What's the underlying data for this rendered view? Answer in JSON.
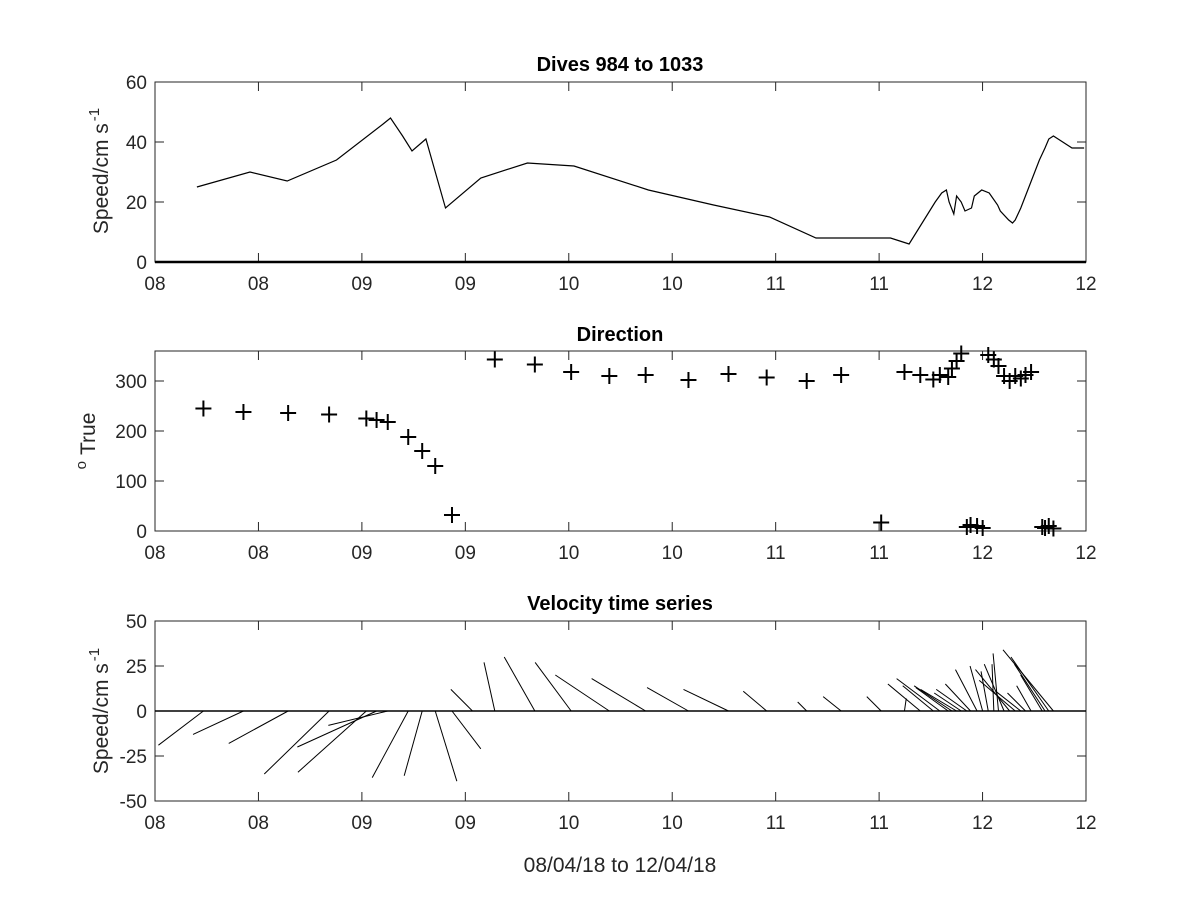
{
  "chart_data": [
    {
      "type": "line",
      "title": "Dives 984 to 1033",
      "ylabel": "Speed/cm s",
      "ylabel_superscript": "-1",
      "xlabel": "",
      "xlim": [
        0,
        1
      ],
      "ylim": [
        0,
        60
      ],
      "x_tick_labels": [
        "08",
        "08",
        "09",
        "09",
        "10",
        "10",
        "11",
        "11",
        "12",
        "12"
      ],
      "y_tick_labels": [
        "0",
        "20",
        "40",
        "60"
      ],
      "y_ticks": [
        0,
        20,
        40,
        60
      ],
      "series": [
        {
          "x": [
            0.045,
            0.102,
            0.142,
            0.195,
            0.245,
            0.253,
            0.266,
            0.276,
            0.291,
            0.312,
            0.35,
            0.4,
            0.45,
            0.53,
            0.6,
            0.66,
            0.71,
            0.76,
            0.79,
            0.8,
            0.81,
            0.838,
            0.845,
            0.85,
            0.853,
            0.858,
            0.861,
            0.866,
            0.87,
            0.877,
            0.88,
            0.888,
            0.896,
            0.905,
            0.908,
            0.917,
            0.921,
            0.924,
            0.93,
            0.94,
            0.95,
            0.956,
            0.96,
            0.965,
            0.97,
            0.985,
            0.992,
            0.998
          ],
          "y": [
            25,
            30,
            27,
            34,
            46,
            48,
            42,
            37,
            41,
            18,
            28,
            33,
            32,
            24,
            19,
            15,
            8,
            8,
            8,
            7,
            6,
            20,
            23,
            24,
            20,
            16,
            22,
            20,
            17,
            18,
            22,
            24,
            23,
            19,
            17,
            14,
            13,
            14,
            18,
            26,
            34,
            38,
            41,
            42,
            41,
            38,
            38,
            38
          ]
        }
      ]
    },
    {
      "type": "scatter",
      "title": "Direction",
      "ylabel": "True",
      "ylabel_superscript": "o",
      "xlabel": "",
      "xlim": [
        0,
        1
      ],
      "ylim": [
        0,
        360
      ],
      "x_tick_labels": [
        "08",
        "08",
        "09",
        "09",
        "10",
        "10",
        "11",
        "11",
        "12",
        "12"
      ],
      "y_tick_labels": [
        "0",
        "100",
        "200",
        "300"
      ],
      "y_ticks": [
        0,
        100,
        200,
        300
      ],
      "marker": "+",
      "series": [
        {
          "x": [
            0.052,
            0.095,
            0.143,
            0.187,
            0.227,
            0.238,
            0.25,
            0.272,
            0.287,
            0.301,
            0.319,
            0.365,
            0.408,
            0.447,
            0.488,
            0.527,
            0.573,
            0.616,
            0.657,
            0.7,
            0.737,
            0.78,
            0.805,
            0.822,
            0.836,
            0.843,
            0.852,
            0.856,
            0.861,
            0.866,
            0.872,
            0.876,
            0.883,
            0.889,
            0.895,
            0.901,
            0.906,
            0.912,
            0.918,
            0.924,
            0.93,
            0.935,
            0.941,
            0.953,
            0.956,
            0.96,
            0.965
          ],
          "y": [
            245,
            238,
            236,
            233,
            225,
            222,
            218,
            188,
            160,
            130,
            32,
            343,
            333,
            318,
            310,
            312,
            302,
            314,
            307,
            300,
            312,
            17,
            318,
            312,
            303,
            312,
            308,
            325,
            340,
            355,
            8,
            12,
            10,
            6,
            352,
            343,
            330,
            310,
            300,
            310,
            305,
            312,
            318,
            8,
            6,
            10,
            5
          ]
        }
      ]
    },
    {
      "type": "stick",
      "title": "Velocity time series",
      "ylabel": "Speed/cm s",
      "ylabel_superscript": "-1",
      "xlabel": "08/04/18 to 12/04/18",
      "xlim": [
        0,
        1
      ],
      "ylim": [
        -50,
        50
      ],
      "x_tick_labels": [
        "08",
        "08",
        "09",
        "09",
        "10",
        "10",
        "11",
        "11",
        "12",
        "12"
      ],
      "y_tick_labels": [
        "50",
        "25",
        "0",
        "-25",
        "-50"
      ],
      "y_ticks": [
        50,
        25,
        0,
        -25,
        -50
      ],
      "sticks": [
        {
          "x": 0.052,
          "u": -25,
          "v": -19
        },
        {
          "x": 0.095,
          "u": -28,
          "v": -13
        },
        {
          "x": 0.143,
          "u": -33,
          "v": -18
        },
        {
          "x": 0.187,
          "u": -36,
          "v": -35
        },
        {
          "x": 0.227,
          "u": -38,
          "v": -34
        },
        {
          "x": 0.238,
          "u": -44,
          "v": -20
        },
        {
          "x": 0.25,
          "u": -33,
          "v": -8
        },
        {
          "x": 0.272,
          "u": -20,
          "v": -37
        },
        {
          "x": 0.287,
          "u": -10,
          "v": -36
        },
        {
          "x": 0.301,
          "u": 12,
          "v": -39
        },
        {
          "x": 0.319,
          "u": 16,
          "v": -21
        },
        {
          "x": 0.341,
          "u": -12,
          "v": 12
        },
        {
          "x": 0.365,
          "u": -6,
          "v": 27
        },
        {
          "x": 0.408,
          "u": -17,
          "v": 30
        },
        {
          "x": 0.447,
          "u": -20,
          "v": 27
        },
        {
          "x": 0.488,
          "u": -30,
          "v": 20
        },
        {
          "x": 0.527,
          "u": -30,
          "v": 18
        },
        {
          "x": 0.573,
          "u": -23,
          "v": 13
        },
        {
          "x": 0.616,
          "u": -25,
          "v": 12
        },
        {
          "x": 0.657,
          "u": -13,
          "v": 11
        },
        {
          "x": 0.7,
          "u": -5,
          "v": 5
        },
        {
          "x": 0.737,
          "u": -10,
          "v": 8
        },
        {
          "x": 0.78,
          "u": -8,
          "v": 8
        },
        {
          "x": 0.805,
          "u": 1,
          "v": 7
        },
        {
          "x": 0.822,
          "u": -18,
          "v": 15
        },
        {
          "x": 0.836,
          "u": -17,
          "v": 14
        },
        {
          "x": 0.843,
          "u": -24,
          "v": 18
        },
        {
          "x": 0.852,
          "u": -18,
          "v": 13
        },
        {
          "x": 0.856,
          "u": -21,
          "v": 14
        },
        {
          "x": 0.861,
          "u": -20,
          "v": 12
        },
        {
          "x": 0.866,
          "u": -15,
          "v": 10
        },
        {
          "x": 0.872,
          "u": -17,
          "v": 12
        },
        {
          "x": 0.876,
          "u": -14,
          "v": 15
        },
        {
          "x": 0.883,
          "u": -12,
          "v": 23
        },
        {
          "x": 0.889,
          "u": -7,
          "v": 25
        },
        {
          "x": 0.895,
          "u": -4,
          "v": 22
        },
        {
          "x": 0.901,
          "u": -1,
          "v": 26
        },
        {
          "x": 0.906,
          "u": -3,
          "v": 32
        },
        {
          "x": 0.912,
          "u": -11,
          "v": 26
        },
        {
          "x": 0.918,
          "u": -19,
          "v": 23
        },
        {
          "x": 0.924,
          "u": -20,
          "v": 17
        },
        {
          "x": 0.93,
          "u": -14,
          "v": 11
        },
        {
          "x": 0.935,
          "u": -10,
          "v": 10
        },
        {
          "x": 0.941,
          "u": -8,
          "v": 14
        },
        {
          "x": 0.953,
          "u": -12,
          "v": 20
        },
        {
          "x": 0.956,
          "u": -17,
          "v": 26
        },
        {
          "x": 0.96,
          "u": -21,
          "v": 30
        },
        {
          "x": 0.965,
          "u": -28,
          "v": 34
        }
      ]
    }
  ]
}
